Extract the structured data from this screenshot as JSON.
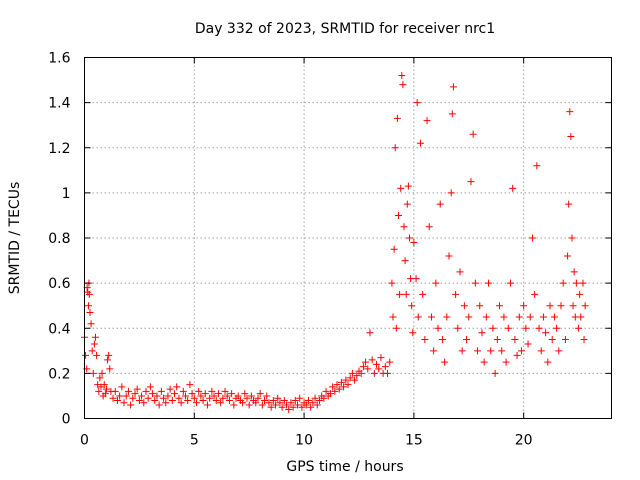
{
  "chart_data": {
    "type": "scatter",
    "title": "Day 332 of 2023, SRMTID for receiver nrc1",
    "xlabel": "GPS time / hours",
    "ylabel": "SRMTID / TECUs",
    "xlim": [
      0,
      24
    ],
    "ylim": [
      0,
      1.6
    ],
    "xticks": [
      0,
      5,
      10,
      15,
      20
    ],
    "xtick_labels": [
      "0",
      "5",
      "10",
      "15",
      "20"
    ],
    "yticks": [
      0,
      0.2,
      0.4,
      0.6,
      0.8,
      1.0,
      1.2,
      1.4,
      1.6
    ],
    "ytick_labels": [
      "0",
      "0.2",
      "0.4",
      "0.6",
      "0.8",
      "1",
      "1.2",
      "1.4",
      "1.6"
    ],
    "grid": true,
    "marker": "plus",
    "color": "#ff0000",
    "series": [
      {
        "name": "nrc1",
        "points": [
          [
            0.0,
            0.36
          ],
          [
            0.05,
            0.28
          ],
          [
            0.1,
            0.22
          ],
          [
            0.12,
            0.58
          ],
          [
            0.15,
            0.56
          ],
          [
            0.18,
            0.5
          ],
          [
            0.2,
            0.6
          ],
          [
            0.22,
            0.55
          ],
          [
            0.25,
            0.47
          ],
          [
            0.3,
            0.42
          ],
          [
            0.35,
            0.3
          ],
          [
            0.4,
            0.2
          ],
          [
            0.45,
            0.33
          ],
          [
            0.5,
            0.36
          ],
          [
            0.55,
            0.28
          ],
          [
            0.6,
            0.15
          ],
          [
            0.65,
            0.12
          ],
          [
            0.7,
            0.18
          ],
          [
            0.75,
            0.14
          ],
          [
            0.8,
            0.2
          ],
          [
            0.85,
            0.1
          ],
          [
            0.9,
            0.15
          ],
          [
            0.95,
            0.11
          ],
          [
            1.0,
            0.13
          ],
          [
            1.05,
            0.26
          ],
          [
            1.1,
            0.28
          ],
          [
            1.15,
            0.22
          ],
          [
            1.2,
            0.12
          ],
          [
            1.3,
            0.09
          ],
          [
            1.4,
            0.12
          ],
          [
            1.5,
            0.08
          ],
          [
            1.6,
            0.1
          ],
          [
            1.7,
            0.14
          ],
          [
            1.8,
            0.07
          ],
          [
            1.9,
            0.1
          ],
          [
            2.0,
            0.12
          ],
          [
            2.1,
            0.06
          ],
          [
            2.2,
            0.09
          ],
          [
            2.3,
            0.11
          ],
          [
            2.4,
            0.13
          ],
          [
            2.5,
            0.08
          ],
          [
            2.6,
            0.1
          ],
          [
            2.7,
            0.07
          ],
          [
            2.8,
            0.12
          ],
          [
            2.9,
            0.09
          ],
          [
            3.0,
            0.14
          ],
          [
            3.1,
            0.11
          ],
          [
            3.2,
            0.08
          ],
          [
            3.3,
            0.1
          ],
          [
            3.4,
            0.06
          ],
          [
            3.5,
            0.12
          ],
          [
            3.6,
            0.09
          ],
          [
            3.7,
            0.07
          ],
          [
            3.8,
            0.1
          ],
          [
            3.9,
            0.13
          ],
          [
            4.0,
            0.08
          ],
          [
            4.1,
            0.11
          ],
          [
            4.2,
            0.14
          ],
          [
            4.3,
            0.09
          ],
          [
            4.4,
            0.07
          ],
          [
            4.5,
            0.12
          ],
          [
            4.6,
            0.1
          ],
          [
            4.7,
            0.08
          ],
          [
            4.8,
            0.15
          ],
          [
            4.9,
            0.11
          ],
          [
            5.0,
            0.09
          ],
          [
            5.1,
            0.07
          ],
          [
            5.2,
            0.12
          ],
          [
            5.3,
            0.1
          ],
          [
            5.4,
            0.08
          ],
          [
            5.5,
            0.11
          ],
          [
            5.6,
            0.06
          ],
          [
            5.7,
            0.09
          ],
          [
            5.8,
            0.12
          ],
          [
            5.9,
            0.1
          ],
          [
            6.0,
            0.08
          ],
          [
            6.1,
            0.11
          ],
          [
            6.2,
            0.07
          ],
          [
            6.3,
            0.09
          ],
          [
            6.4,
            0.12
          ],
          [
            6.5,
            0.1
          ],
          [
            6.6,
            0.08
          ],
          [
            6.7,
            0.11
          ],
          [
            6.8,
            0.06
          ],
          [
            6.9,
            0.09
          ],
          [
            7.0,
            0.1
          ],
          [
            7.1,
            0.08
          ],
          [
            7.2,
            0.07
          ],
          [
            7.3,
            0.11
          ],
          [
            7.4,
            0.09
          ],
          [
            7.5,
            0.06
          ],
          [
            7.6,
            0.1
          ],
          [
            7.7,
            0.08
          ],
          [
            7.8,
            0.07
          ],
          [
            7.9,
            0.09
          ],
          [
            8.0,
            0.11
          ],
          [
            8.1,
            0.06
          ],
          [
            8.2,
            0.08
          ],
          [
            8.3,
            0.1
          ],
          [
            8.4,
            0.07
          ],
          [
            8.5,
            0.05
          ],
          [
            8.6,
            0.08
          ],
          [
            8.7,
            0.06
          ],
          [
            8.8,
            0.09
          ],
          [
            8.9,
            0.07
          ],
          [
            9.0,
            0.05
          ],
          [
            9.1,
            0.08
          ],
          [
            9.2,
            0.06
          ],
          [
            9.3,
            0.04
          ],
          [
            9.4,
            0.07
          ],
          [
            9.5,
            0.05
          ],
          [
            9.6,
            0.08
          ],
          [
            9.7,
            0.06
          ],
          [
            9.8,
            0.09
          ],
          [
            9.9,
            0.05
          ],
          [
            10.0,
            0.07
          ],
          [
            10.1,
            0.06
          ],
          [
            10.2,
            0.08
          ],
          [
            10.3,
            0.05
          ],
          [
            10.4,
            0.07
          ],
          [
            10.5,
            0.09
          ],
          [
            10.6,
            0.06
          ],
          [
            10.7,
            0.08
          ],
          [
            10.8,
            0.1
          ],
          [
            10.9,
            0.09
          ],
          [
            11.0,
            0.12
          ],
          [
            11.1,
            0.1
          ],
          [
            11.2,
            0.11
          ],
          [
            11.3,
            0.14
          ],
          [
            11.4,
            0.12
          ],
          [
            11.5,
            0.15
          ],
          [
            11.6,
            0.13
          ],
          [
            11.7,
            0.16
          ],
          [
            11.8,
            0.14
          ],
          [
            11.9,
            0.17
          ],
          [
            12.0,
            0.15
          ],
          [
            12.1,
            0.18
          ],
          [
            12.2,
            0.2
          ],
          [
            12.3,
            0.17
          ],
          [
            12.4,
            0.19
          ],
          [
            12.5,
            0.21
          ],
          [
            12.6,
            0.2
          ],
          [
            12.7,
            0.23
          ],
          [
            12.8,
            0.25
          ],
          [
            12.9,
            0.22
          ],
          [
            13.0,
            0.38
          ],
          [
            13.1,
            0.26
          ],
          [
            13.2,
            0.2
          ],
          [
            13.3,
            0.24
          ],
          [
            13.4,
            0.22
          ],
          [
            13.5,
            0.27
          ],
          [
            13.6,
            0.2
          ],
          [
            13.7,
            0.23
          ],
          [
            13.8,
            0.2
          ],
          [
            13.9,
            0.25
          ],
          [
            14.0,
            0.6
          ],
          [
            14.05,
            0.45
          ],
          [
            14.1,
            0.75
          ],
          [
            14.15,
            1.2
          ],
          [
            14.2,
            0.4
          ],
          [
            14.25,
            1.33
          ],
          [
            14.3,
            0.9
          ],
          [
            14.35,
            0.55
          ],
          [
            14.4,
            1.02
          ],
          [
            14.45,
            1.52
          ],
          [
            14.5,
            1.48
          ],
          [
            14.55,
            0.85
          ],
          [
            14.6,
            0.7
          ],
          [
            14.65,
            0.55
          ],
          [
            14.7,
            0.95
          ],
          [
            14.75,
            1.03
          ],
          [
            14.8,
            0.8
          ],
          [
            14.85,
            0.62
          ],
          [
            14.9,
            0.5
          ],
          [
            14.95,
            0.38
          ],
          [
            15.0,
            0.78
          ],
          [
            15.1,
            0.62
          ],
          [
            15.15,
            1.4
          ],
          [
            15.2,
            0.45
          ],
          [
            15.3,
            1.22
          ],
          [
            15.4,
            0.55
          ],
          [
            15.5,
            0.35
          ],
          [
            15.6,
            1.32
          ],
          [
            15.7,
            0.85
          ],
          [
            15.8,
            0.45
          ],
          [
            15.9,
            0.3
          ],
          [
            16.0,
            0.6
          ],
          [
            16.1,
            0.4
          ],
          [
            16.2,
            0.95
          ],
          [
            16.3,
            0.35
          ],
          [
            16.4,
            0.25
          ],
          [
            16.5,
            0.45
          ],
          [
            16.6,
            0.72
          ],
          [
            16.7,
            1.0
          ],
          [
            16.75,
            1.35
          ],
          [
            16.8,
            1.47
          ],
          [
            16.9,
            0.55
          ],
          [
            17.0,
            0.4
          ],
          [
            17.1,
            0.65
          ],
          [
            17.2,
            0.3
          ],
          [
            17.3,
            0.5
          ],
          [
            17.4,
            0.35
          ],
          [
            17.5,
            0.45
          ],
          [
            17.6,
            1.05
          ],
          [
            17.7,
            1.26
          ],
          [
            17.8,
            0.6
          ],
          [
            17.9,
            0.3
          ],
          [
            18.0,
            0.5
          ],
          [
            18.1,
            0.38
          ],
          [
            18.2,
            0.25
          ],
          [
            18.3,
            0.45
          ],
          [
            18.4,
            0.6
          ],
          [
            18.5,
            0.3
          ],
          [
            18.6,
            0.4
          ],
          [
            18.7,
            0.2
          ],
          [
            18.8,
            0.35
          ],
          [
            18.9,
            0.5
          ],
          [
            19.0,
            0.3
          ],
          [
            19.1,
            0.45
          ],
          [
            19.2,
            0.25
          ],
          [
            19.3,
            0.4
          ],
          [
            19.4,
            0.6
          ],
          [
            19.5,
            1.02
          ],
          [
            19.6,
            0.35
          ],
          [
            19.7,
            0.28
          ],
          [
            19.8,
            0.45
          ],
          [
            19.9,
            0.3
          ],
          [
            20.0,
            0.5
          ],
          [
            20.1,
            0.4
          ],
          [
            20.2,
            0.33
          ],
          [
            20.3,
            0.45
          ],
          [
            20.4,
            0.8
          ],
          [
            20.5,
            0.55
          ],
          [
            20.6,
            1.12
          ],
          [
            20.7,
            0.4
          ],
          [
            20.8,
            0.3
          ],
          [
            20.9,
            0.45
          ],
          [
            21.0,
            0.38
          ],
          [
            21.1,
            0.25
          ],
          [
            21.2,
            0.5
          ],
          [
            21.3,
            0.35
          ],
          [
            21.4,
            0.45
          ],
          [
            21.5,
            0.4
          ],
          [
            21.6,
            0.3
          ],
          [
            21.7,
            0.5
          ],
          [
            21.8,
            0.6
          ],
          [
            21.9,
            0.35
          ],
          [
            22.0,
            0.72
          ],
          [
            22.05,
            0.95
          ],
          [
            22.1,
            1.36
          ],
          [
            22.15,
            1.25
          ],
          [
            22.2,
            0.8
          ],
          [
            22.25,
            0.5
          ],
          [
            22.3,
            0.65
          ],
          [
            22.35,
            0.45
          ],
          [
            22.4,
            0.6
          ],
          [
            22.5,
            0.4
          ],
          [
            22.55,
            0.55
          ],
          [
            22.6,
            0.45
          ],
          [
            22.7,
            0.6
          ],
          [
            22.75,
            0.35
          ],
          [
            22.8,
            0.5
          ]
        ]
      }
    ]
  }
}
